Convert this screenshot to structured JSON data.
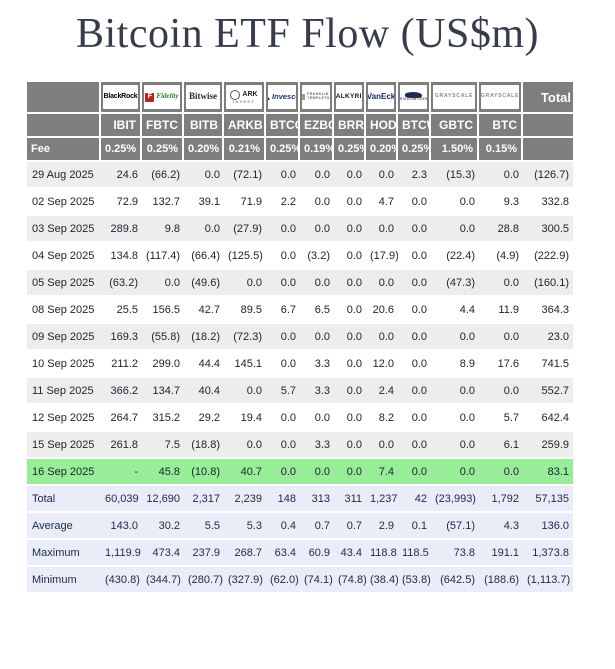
{
  "title": "Bitcoin ETF Flow (US$m)",
  "colors": {
    "title_text": "#373c4d",
    "header_bg": "#7e7e7e",
    "header_text": "#ffffff",
    "negative": "#e8403a",
    "stripe_bg": "#ededed",
    "highlight_bg": "#98ee98",
    "summary_bg": "#e9edf8",
    "body_text": "#20242f"
  },
  "chart_data": {
    "type": "table",
    "title": "Bitcoin ETF Flow (US$m)",
    "fee_label": "Fee",
    "total_label": "Total",
    "funds": [
      {
        "issuer": "BlackRock",
        "logo": "blackrock",
        "icon_name": "blackrock-logo",
        "lines": [
          "BlackRock"
        ],
        "ticker": "IBIT",
        "fee": "0.25%"
      },
      {
        "issuer": "Fidelity",
        "logo": "fidelity",
        "icon_name": "fidelity-logo",
        "icon_text": "F",
        "lines": [
          "Fidelity"
        ],
        "ticker": "FBTC",
        "fee": "0.25%"
      },
      {
        "issuer": "Bitwise",
        "logo": "bitwise",
        "icon_name": "bitwise-logo",
        "lines": [
          "Bitwise"
        ],
        "ticker": "BITB",
        "fee": "0.20%"
      },
      {
        "issuer": "ARK Invest",
        "logo": "ark",
        "icon_name": "ark-invest-logo",
        "lines": [
          "ARK",
          "INVEST"
        ],
        "ticker": "ARKB",
        "fee": "0.21%"
      },
      {
        "issuer": "Invesco",
        "logo": "invesco",
        "icon_name": "invesco-logo",
        "lines": [
          "Invesco"
        ],
        "ticker": "BTCO",
        "fee": "0.25%"
      },
      {
        "issuer": "Franklin Templeton",
        "logo": "franklin",
        "icon_name": "franklin-templeton-logo",
        "lines": [
          "FRANKLIN",
          "TEMPLETON"
        ],
        "ticker": "EZBC",
        "fee": "0.19%"
      },
      {
        "issuer": "Valkyrie",
        "logo": "valkyrie",
        "icon_name": "valkyrie-logo",
        "lines": [
          "VALKYRIE"
        ],
        "ticker": "BRRR",
        "fee": "0.25%"
      },
      {
        "issuer": "VanEck",
        "logo": "vaneck",
        "icon_name": "vaneck-logo",
        "lines": [
          "VanEck"
        ],
        "ticker": "HODL",
        "fee": "0.20%"
      },
      {
        "issuer": "WisdomTree",
        "logo": "wisdomtree",
        "icon_name": "wisdomtree-logo",
        "lines": [
          "WISDOMTREE"
        ],
        "ticker": "BTCW",
        "fee": "0.25%"
      },
      {
        "issuer": "Grayscale",
        "logo": "grayscale",
        "icon_name": "grayscale-logo",
        "lines": [
          "GRAYSCALE"
        ],
        "ticker": "GBTC",
        "fee": "1.50%"
      },
      {
        "issuer": "Grayscale",
        "logo": "grayscale",
        "icon_name": "grayscale-logo",
        "lines": [
          "GRAYSCALE"
        ],
        "ticker": "BTC",
        "fee": "0.15%"
      }
    ],
    "daily_rows": [
      {
        "date": "29 Aug 2025",
        "values": [
          "24.6",
          "(66.2)",
          "0.0",
          "(72.1)",
          "0.0",
          "0.0",
          "0.0",
          "0.0",
          "2.3",
          "(15.3)",
          "0.0"
        ],
        "total": "(126.7)",
        "highlight": false
      },
      {
        "date": "02 Sep 2025",
        "values": [
          "72.9",
          "132.7",
          "39.1",
          "71.9",
          "2.2",
          "0.0",
          "0.0",
          "4.7",
          "0.0",
          "0.0",
          "9.3"
        ],
        "total": "332.8",
        "highlight": false
      },
      {
        "date": "03 Sep 2025",
        "values": [
          "289.8",
          "9.8",
          "0.0",
          "(27.9)",
          "0.0",
          "0.0",
          "0.0",
          "0.0",
          "0.0",
          "0.0",
          "28.8"
        ],
        "total": "300.5",
        "highlight": false
      },
      {
        "date": "04 Sep 2025",
        "values": [
          "134.8",
          "(117.4)",
          "(66.4)",
          "(125.5)",
          "0.0",
          "(3.2)",
          "0.0",
          "(17.9)",
          "0.0",
          "(22.4)",
          "(4.9)"
        ],
        "total": "(222.9)",
        "highlight": false
      },
      {
        "date": "05 Sep 2025",
        "values": [
          "(63.2)",
          "0.0",
          "(49.6)",
          "0.0",
          "0.0",
          "0.0",
          "0.0",
          "0.0",
          "0.0",
          "(47.3)",
          "0.0"
        ],
        "total": "(160.1)",
        "highlight": false
      },
      {
        "date": "08 Sep 2025",
        "values": [
          "25.5",
          "156.5",
          "42.7",
          "89.5",
          "6.7",
          "6.5",
          "0.0",
          "20.6",
          "0.0",
          "4.4",
          "11.9"
        ],
        "total": "364.3",
        "highlight": false
      },
      {
        "date": "09 Sep 2025",
        "values": [
          "169.3",
          "(55.8)",
          "(18.2)",
          "(72.3)",
          "0.0",
          "0.0",
          "0.0",
          "0.0",
          "0.0",
          "0.0",
          "0.0"
        ],
        "total": "23.0",
        "highlight": false
      },
      {
        "date": "10 Sep 2025",
        "values": [
          "211.2",
          "299.0",
          "44.4",
          "145.1",
          "0.0",
          "3.3",
          "0.0",
          "12.0",
          "0.0",
          "8.9",
          "17.6"
        ],
        "total": "741.5",
        "highlight": false
      },
      {
        "date": "11 Sep 2025",
        "values": [
          "366.2",
          "134.7",
          "40.4",
          "0.0",
          "5.7",
          "3.3",
          "0.0",
          "2.4",
          "0.0",
          "0.0",
          "0.0"
        ],
        "total": "552.7",
        "highlight": false
      },
      {
        "date": "12 Sep 2025",
        "values": [
          "264.7",
          "315.2",
          "29.2",
          "19.4",
          "0.0",
          "0.0",
          "0.0",
          "8.2",
          "0.0",
          "0.0",
          "5.7"
        ],
        "total": "642.4",
        "highlight": false
      },
      {
        "date": "15 Sep 2025",
        "values": [
          "261.8",
          "7.5",
          "(18.8)",
          "0.0",
          "0.0",
          "3.3",
          "0.0",
          "0.0",
          "0.0",
          "0.0",
          "6.1"
        ],
        "total": "259.9",
        "highlight": false
      },
      {
        "date": "16 Sep 2025",
        "values": [
          "-",
          "45.8",
          "(10.8)",
          "40.7",
          "0.0",
          "0.0",
          "0.0",
          "7.4",
          "0.0",
          "0.0",
          "0.0"
        ],
        "total": "83.1",
        "highlight": true
      }
    ],
    "summary_rows": [
      {
        "label": "Total",
        "values": [
          "60,039",
          "12,690",
          "2,317",
          "2,239",
          "148",
          "313",
          "311",
          "1,237",
          "42",
          "(23,993)",
          "1,792"
        ],
        "total": "57,135"
      },
      {
        "label": "Average",
        "values": [
          "143.0",
          "30.2",
          "5.5",
          "5.3",
          "0.4",
          "0.7",
          "0.7",
          "2.9",
          "0.1",
          "(57.1)",
          "4.3"
        ],
        "total": "136.0"
      },
      {
        "label": "Maximum",
        "values": [
          "1,119.9",
          "473.4",
          "237.9",
          "268.7",
          "63.4",
          "60.9",
          "43.4",
          "118.8",
          "118.5",
          "73.8",
          "191.1"
        ],
        "total": "1,373.8"
      },
      {
        "label": "Minimum",
        "values": [
          "(430.8)",
          "(344.7)",
          "(280.7)",
          "(327.9)",
          "(62.0)",
          "(74.1)",
          "(74.8)",
          "(38.4)",
          "(53.8)",
          "(642.5)",
          "(188.6)"
        ],
        "total": "(1,113.7)"
      }
    ]
  }
}
